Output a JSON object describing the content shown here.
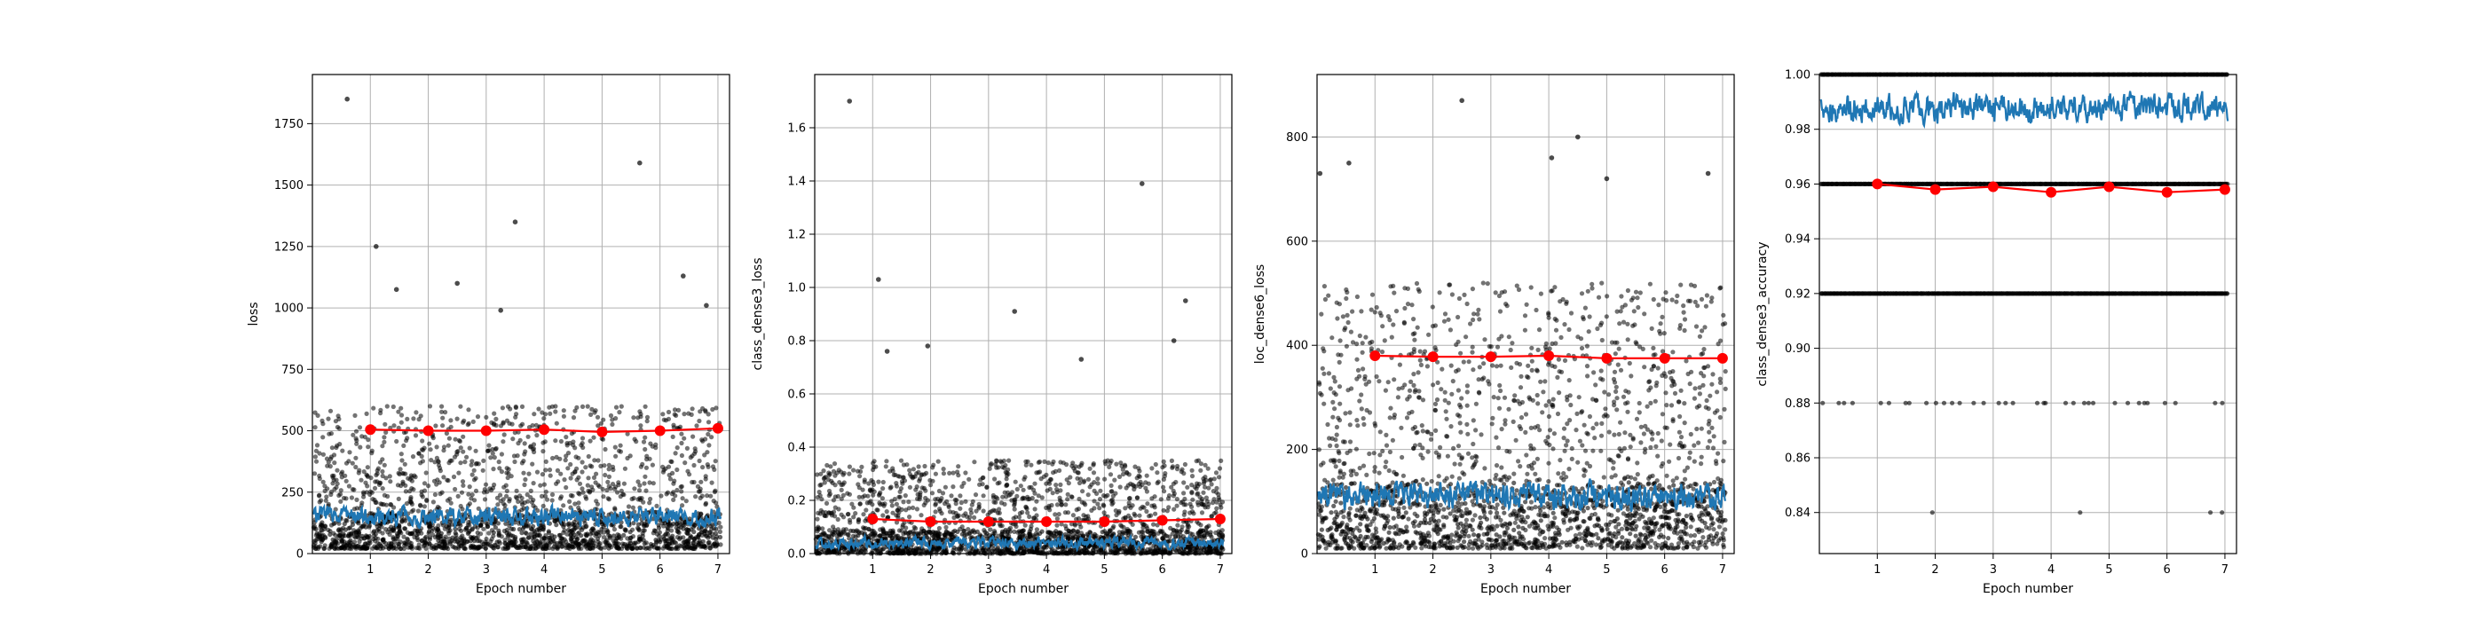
{
  "figure": {
    "background": "#ffffff"
  },
  "colors": {
    "scatter": "#000000",
    "series": "#1f77b4",
    "epoch_mean": "#ff0000",
    "grid": "#b0b0b0"
  },
  "chart_data": [
    {
      "type": "scatter",
      "xlabel": "Epoch number",
      "ylabel": "loss",
      "xlim": [
        0,
        7.2
      ],
      "ylim": [
        0,
        1950
      ],
      "xticks": [
        1,
        2,
        3,
        4,
        5,
        6,
        7
      ],
      "yticks": [
        0,
        250,
        500,
        750,
        1000,
        1250,
        1500,
        1750
      ],
      "grid": true,
      "scatter_band": {
        "typical_min": 20,
        "typical_max": 600
      },
      "outliers": [
        [
          0.6,
          1850
        ],
        [
          1.1,
          1250
        ],
        [
          1.45,
          1075
        ],
        [
          2.5,
          1100
        ],
        [
          3.25,
          990
        ],
        [
          3.5,
          1350
        ],
        [
          5.65,
          1590
        ],
        [
          6.4,
          1130
        ],
        [
          6.8,
          1010
        ]
      ],
      "line_series": {
        "base": 150,
        "amplitude": 45
      },
      "epoch_means": {
        "x": [
          1,
          2,
          3,
          4,
          5,
          6,
          7
        ],
        "y": [
          505,
          500,
          500,
          505,
          495,
          500,
          510
        ]
      }
    },
    {
      "type": "scatter",
      "xlabel": "Epoch number",
      "ylabel": "class_dense3_loss",
      "xlim": [
        0,
        7.2
      ],
      "ylim": [
        0,
        1.8
      ],
      "xticks": [
        1,
        2,
        3,
        4,
        5,
        6,
        7
      ],
      "yticks": [
        "0.0",
        "0.2",
        "0.4",
        "0.6",
        "0.8",
        "1.0",
        "1.2",
        "1.4",
        "1.6"
      ],
      "grid": true,
      "scatter_band": {
        "typical_min": 0.0,
        "typical_max": 0.35
      },
      "outliers": [
        [
          0.6,
          1.7
        ],
        [
          1.1,
          1.03
        ],
        [
          1.25,
          0.76
        ],
        [
          1.95,
          0.78
        ],
        [
          3.45,
          0.91
        ],
        [
          4.6,
          0.73
        ],
        [
          5.65,
          1.39
        ],
        [
          6.2,
          0.8
        ],
        [
          6.4,
          0.95
        ]
      ],
      "line_series": {
        "base": 0.04,
        "amplitude": 0.025
      },
      "epoch_means": {
        "x": [
          1,
          2,
          3,
          4,
          5,
          6,
          7
        ],
        "y": [
          0.13,
          0.12,
          0.12,
          0.12,
          0.12,
          0.125,
          0.13
        ]
      }
    },
    {
      "type": "scatter",
      "xlabel": "Epoch number",
      "ylabel": "loc_dense6_loss",
      "xlim": [
        0,
        7.2
      ],
      "ylim": [
        0,
        920
      ],
      "xticks": [
        1,
        2,
        3,
        4,
        5,
        6,
        7
      ],
      "yticks": [
        0,
        200,
        400,
        600,
        800
      ],
      "grid": true,
      "scatter_band": {
        "typical_min": 10,
        "typical_max": 520
      },
      "outliers": [
        [
          0.05,
          730
        ],
        [
          0.55,
          750
        ],
        [
          2.5,
          870
        ],
        [
          4.5,
          800
        ],
        [
          4.05,
          760
        ],
        [
          6.75,
          730
        ],
        [
          5.0,
          720
        ]
      ],
      "line_series": {
        "base": 110,
        "amplitude": 30
      },
      "epoch_means": {
        "x": [
          1,
          2,
          3,
          4,
          5,
          6,
          7
        ],
        "y": [
          380,
          378,
          378,
          380,
          375,
          375,
          375
        ]
      }
    },
    {
      "type": "scatter",
      "xlabel": "Epoch number",
      "ylabel": "class_dense3_accuracy",
      "xlim": [
        0,
        7.2
      ],
      "ylim": [
        0.825,
        1.0
      ],
      "xticks": [
        1,
        2,
        3,
        4,
        5,
        6,
        7
      ],
      "yticks": [
        "0.84",
        "0.86",
        "0.88",
        "0.90",
        "0.92",
        "0.94",
        "0.96",
        "0.98",
        "1.00"
      ],
      "grid": true,
      "accuracy_rows": [
        {
          "y": 1.0,
          "density": "dense"
        },
        {
          "y": 0.96,
          "density": "dense"
        },
        {
          "y": 0.92,
          "density": "dense"
        },
        {
          "y": 0.88,
          "density": "sparse"
        },
        {
          "y": 0.84,
          "density": "rare",
          "x": [
            1.95,
            4.5,
            6.75,
            6.95
          ]
        }
      ],
      "line_series": {
        "base": 0.988,
        "amplitude": 0.006
      },
      "epoch_means": {
        "x": [
          1,
          2,
          3,
          4,
          5,
          6,
          7
        ],
        "y": [
          0.96,
          0.958,
          0.959,
          0.957,
          0.959,
          0.957,
          0.958
        ]
      }
    }
  ]
}
